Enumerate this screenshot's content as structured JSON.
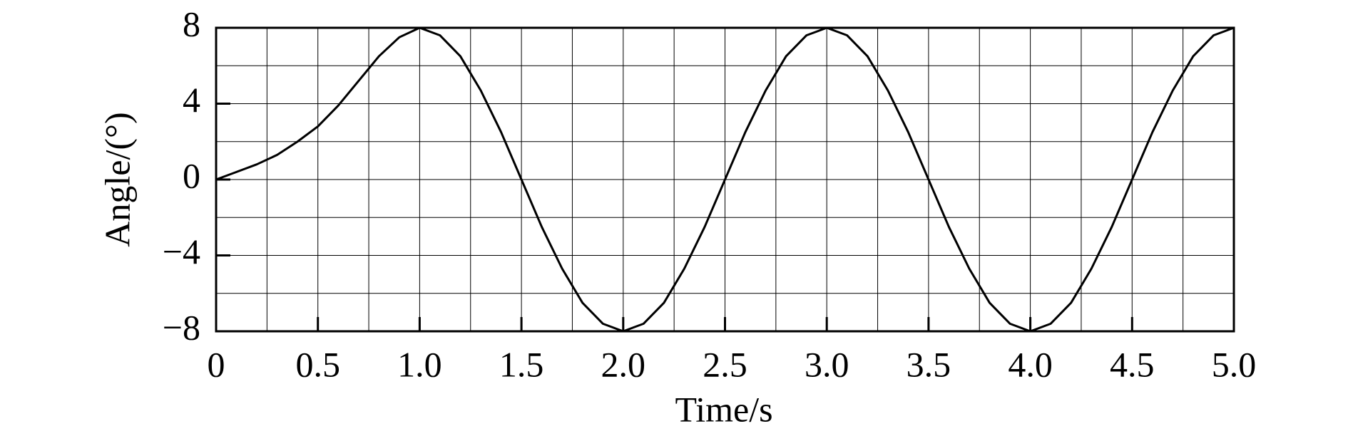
{
  "chart_data": {
    "type": "line",
    "xlabel": "Time/s",
    "ylabel": "Angle/(°)",
    "x": [
      0,
      0.1,
      0.2,
      0.3,
      0.4,
      0.5,
      0.6,
      0.7,
      0.8,
      0.9,
      1.0,
      1.1,
      1.2,
      1.3,
      1.4,
      1.5,
      1.6,
      1.7,
      1.8,
      1.9,
      2.0,
      2.1,
      2.2,
      2.3,
      2.4,
      2.5,
      2.6,
      2.7,
      2.8,
      2.9,
      3.0,
      3.1,
      3.2,
      3.3,
      3.4,
      3.5,
      3.6,
      3.7,
      3.8,
      3.9,
      4.0,
      4.1,
      4.2,
      4.3,
      4.4,
      4.5,
      4.6,
      4.7,
      4.8,
      4.9,
      5.0
    ],
    "series": [
      {
        "color": "#000000",
        "values": [
          0,
          0.4,
          0.8,
          1.3,
          2.0,
          2.8,
          3.9,
          5.2,
          6.5,
          7.5,
          8,
          7.6,
          6.5,
          4.7,
          2.5,
          0,
          -2.5,
          -4.7,
          -6.5,
          -7.6,
          -8,
          -7.6,
          -6.5,
          -4.7,
          -2.5,
          0,
          2.5,
          4.7,
          6.5,
          7.6,
          8,
          7.6,
          6.5,
          4.7,
          2.5,
          0,
          -2.5,
          -4.7,
          -6.5,
          -7.6,
          -8,
          -7.6,
          -6.5,
          -4.7,
          -2.5,
          0,
          2.5,
          4.7,
          6.5,
          7.6,
          8
        ]
      }
    ],
    "xlim": [
      0,
      5
    ],
    "ylim": [
      -8,
      8
    ],
    "xticks": [
      0,
      0.5,
      {
        "value": 1,
        "label": "1.0"
      },
      1.5,
      {
        "value": 2,
        "label": "2.0"
      },
      2.5,
      {
        "value": 3,
        "label": "3.0"
      },
      3.5,
      {
        "value": 4,
        "label": "4.0"
      },
      4.5,
      {
        "value": 5,
        "label": "5.0"
      }
    ],
    "yticks": [
      {
        "value": -8,
        "label": "−8"
      },
      {
        "value": -4,
        "label": "−4"
      },
      0,
      4,
      8
    ],
    "x_minor_grid": [
      0.25,
      0.75,
      1.25,
      1.75,
      2.25,
      2.75,
      3.25,
      3.75,
      4.25,
      4.75
    ],
    "y_minor_grid": [
      -6,
      -2,
      2,
      6
    ],
    "grid": true
  }
}
